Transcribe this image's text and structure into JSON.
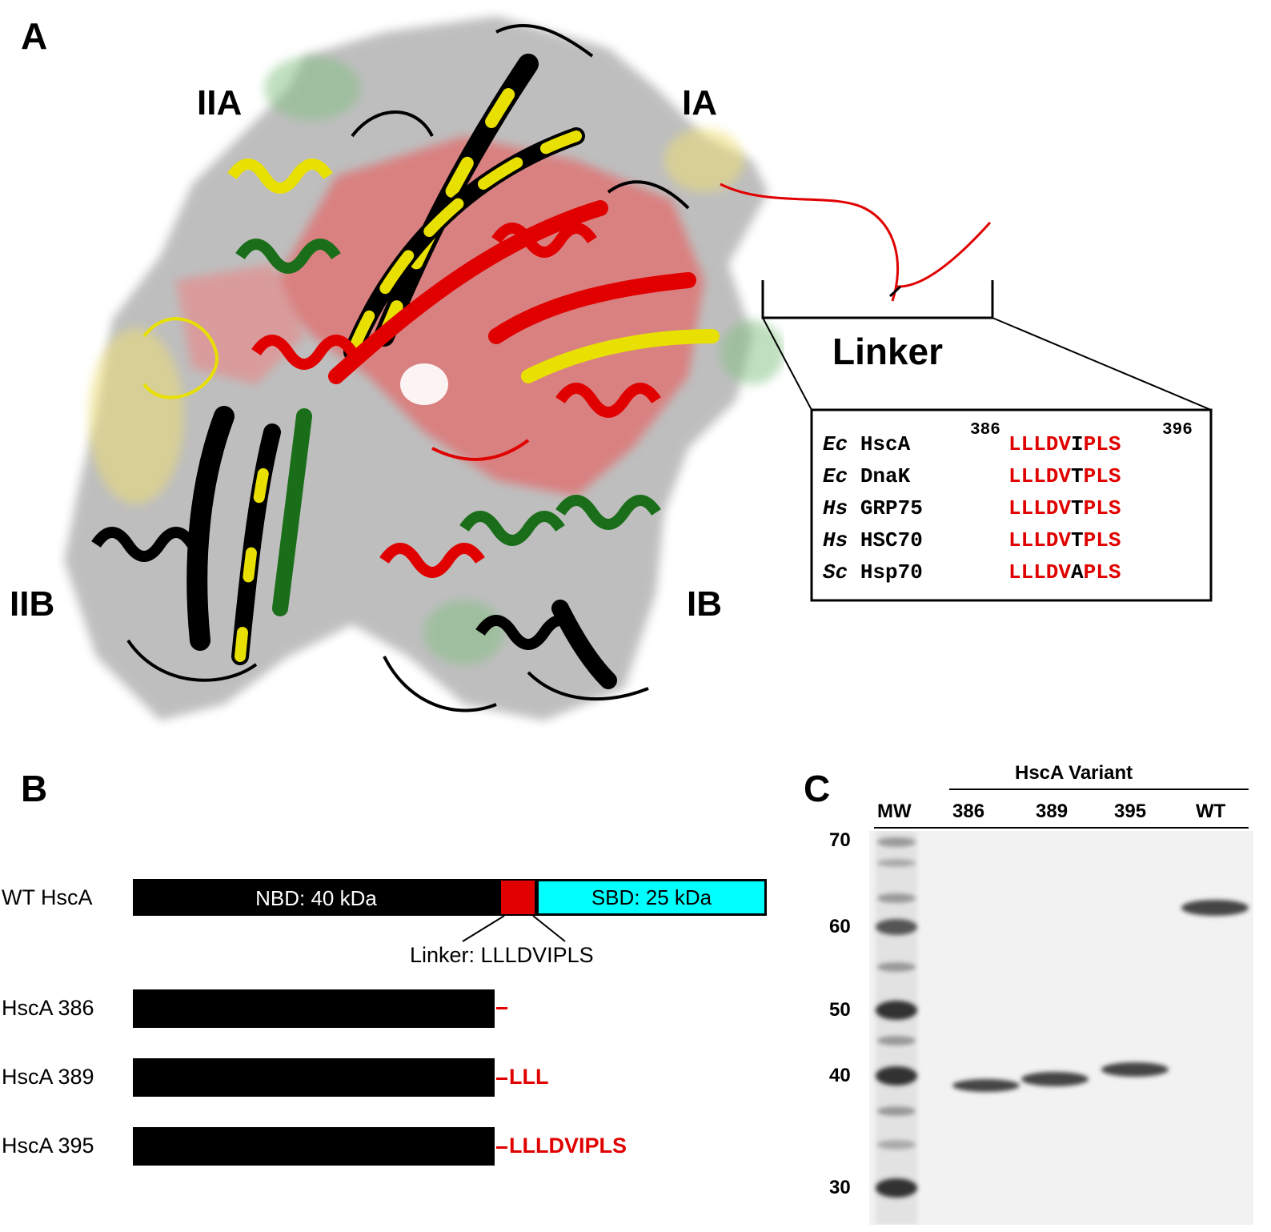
{
  "panels": {
    "a": "A",
    "b": "B",
    "c": "C"
  },
  "panel_a": {
    "domains": [
      "IIA",
      "IA",
      "IIB",
      "IB"
    ],
    "linker_label": "Linker",
    "alignment": {
      "start_num": "386",
      "end_num": "396",
      "rows": [
        {
          "organism": "Ec",
          "protein": "HscA",
          "seq_pre": "LLLDV",
          "seq_var": "I",
          "seq_post": "PLS"
        },
        {
          "organism": "Ec",
          "protein": "DnaK",
          "seq_pre": "LLLDV",
          "seq_var": "T",
          "seq_post": "PLS"
        },
        {
          "organism": "Hs",
          "protein": "GRP75",
          "seq_pre": "LLLDV",
          "seq_var": "T",
          "seq_post": "PLS"
        },
        {
          "organism": "Hs",
          "protein": "HSC70",
          "seq_pre": "LLLDV",
          "seq_var": "T",
          "seq_post": "PLS"
        },
        {
          "organism": "Sc",
          "protein": "Hsp70",
          "seq_pre": "LLLDV",
          "seq_var": "A",
          "seq_post": "PLS"
        }
      ]
    }
  },
  "panel_b": {
    "wt_label": "WT HscA",
    "nbd_label": "NBD: 40 kDa",
    "sbd_label": "SBD: 25 kDa",
    "linker_callout": "Linker: LLLDVIPLS",
    "variants": [
      {
        "label": "HscA 386",
        "tail": ""
      },
      {
        "label": "HscA 389",
        "tail": "LLL"
      },
      {
        "label": "HscA 395",
        "tail": "LLLDVIPLS"
      }
    ],
    "colors": {
      "linker": "#e00000",
      "sbd": "#00ffff",
      "domain": "#000000"
    }
  },
  "panel_c": {
    "group_header": "HscA Variant",
    "lanes": [
      "MW",
      "386",
      "389",
      "395",
      "WT"
    ],
    "mw_markers": [
      "70",
      "60",
      "50",
      "40",
      "30"
    ]
  }
}
